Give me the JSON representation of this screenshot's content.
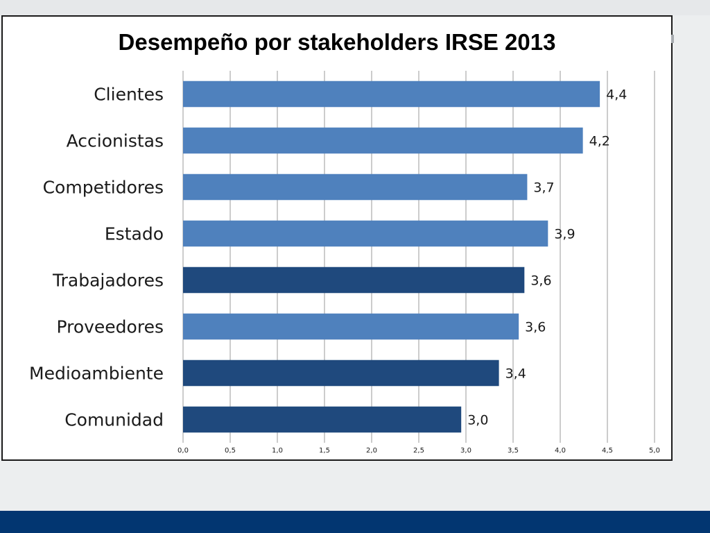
{
  "chart_data": {
    "type": "bar",
    "orientation": "horizontal",
    "title": "Desempeño por stakeholders IRSE 2013",
    "categories": [
      "Clientes",
      "Accionistas",
      "Competidores",
      "Estado",
      "Trabajadores",
      "Proveedores",
      "Medioambiente",
      "Comunidad"
    ],
    "values": [
      4.42,
      4.24,
      3.65,
      3.87,
      3.62,
      3.56,
      3.35,
      2.95
    ],
    "value_labels": [
      "4,4",
      "4,2",
      "3,7",
      "3,9",
      "3,6",
      "3,6",
      "3,4",
      "3,0"
    ],
    "highlighted": [
      false,
      false,
      false,
      false,
      true,
      false,
      true,
      true
    ],
    "xlim": [
      0,
      5
    ],
    "xticks": [
      0,
      0.5,
      1,
      1.5,
      2,
      2.5,
      3,
      3.5,
      4,
      4.5,
      5
    ],
    "xtick_labels": [
      "0,0",
      "0,5",
      "1,0",
      "1,5",
      "2,0",
      "2,5",
      "3,0",
      "3,5",
      "4,0",
      "4,5",
      "5,0"
    ],
    "xlabel": "",
    "ylabel": "",
    "grid": "vertical",
    "legend": "none"
  },
  "colors": {
    "bar_default": "#4f81bd",
    "bar_highlight": "#1f497d",
    "frame": "#1a1a1a",
    "gridline": "#9a9a9a",
    "page_background": "#eceeef",
    "bottom_band": "#023671"
  }
}
